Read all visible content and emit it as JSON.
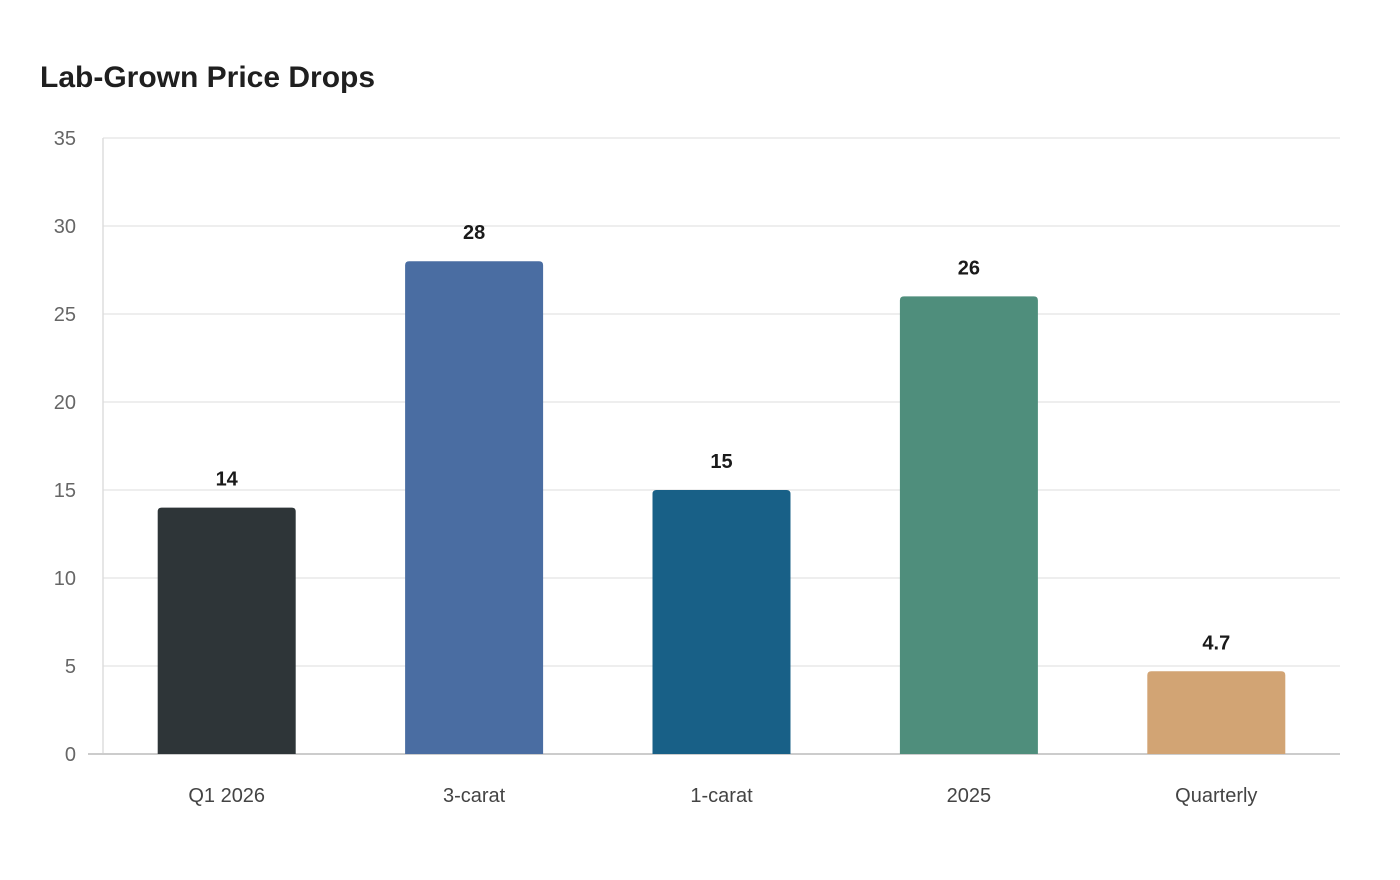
{
  "chart_data": {
    "type": "bar",
    "title": "Lab-Grown Price Drops",
    "xlabel": "",
    "ylabel": "",
    "categories": [
      "Q1 2026",
      "3-carat",
      "1-carat",
      "2025",
      "Quarterly"
    ],
    "values": [
      14,
      28,
      15,
      26,
      4.7
    ],
    "value_labels": [
      "14",
      "28",
      "15",
      "26",
      "4.7"
    ],
    "colors": [
      "#2e3538",
      "#4a6da2",
      "#186087",
      "#4f8e7c",
      "#d2a474"
    ],
    "ylim": [
      0,
      35
    ],
    "yticks": [
      0,
      5,
      10,
      15,
      20,
      25,
      30,
      35
    ],
    "grid": true,
    "legend": "none"
  }
}
